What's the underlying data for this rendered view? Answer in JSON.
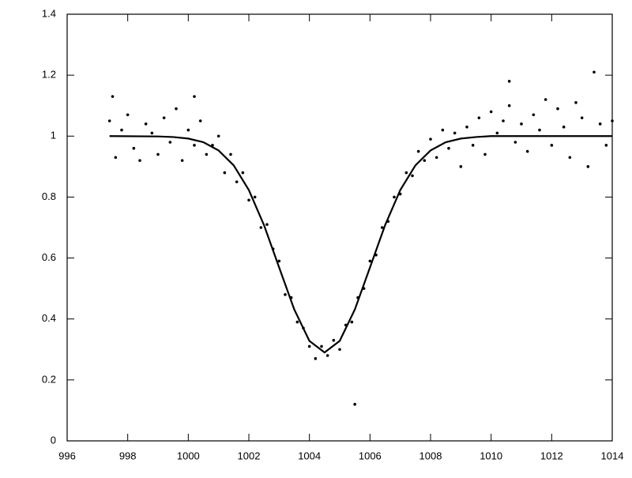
{
  "chart_data": {
    "type": "scatter",
    "xlim": [
      996,
      1014
    ],
    "xticks": [
      996,
      998,
      1000,
      1002,
      1004,
      1006,
      1008,
      1010,
      1012,
      1014
    ],
    "ylim": [
      0,
      1.4
    ],
    "yticks": [
      0,
      0.2,
      0.4,
      0.6,
      0.8,
      1,
      1.2,
      1.4
    ],
    "series": [
      {
        "mode": "markers",
        "color": "#000000",
        "x": [
          997.4,
          997.6,
          997.8,
          998.0,
          998.2,
          998.4,
          998.6,
          998.8,
          999.0,
          999.2,
          999.4,
          999.6,
          999.8,
          1000.0,
          1000.2,
          1000.4,
          1000.6,
          1000.8,
          1001.0,
          1001.2,
          1001.4,
          1001.6,
          1001.8,
          1002.0,
          1002.2,
          1002.4,
          1002.6,
          1002.8,
          1003.0,
          1003.2,
          1003.4,
          1003.6,
          1003.8,
          1004.0,
          1004.2,
          1004.4,
          1004.6,
          1004.8,
          1005.0,
          1005.2,
          1005.4,
          1005.6,
          1005.8,
          1006.0,
          1006.2,
          1006.4,
          1006.6,
          1006.8,
          1007.0,
          1007.2,
          1007.4,
          1007.6,
          1007.8,
          1008.0,
          1008.2,
          1008.4,
          1008.6,
          1008.8,
          1009.0,
          1009.2,
          1009.4,
          1009.6,
          1009.8,
          1010.0,
          1010.2,
          1010.4,
          1010.6,
          1010.8,
          1011.0,
          1011.2,
          1011.4,
          1011.6,
          1011.8,
          1012.0,
          1012.2,
          1012.4,
          1012.6,
          1012.8,
          1013.0,
          1013.2,
          1013.4,
          1013.6,
          1013.8,
          1014.0,
          1005.5,
          997.5,
          1000.2,
          1010.6
        ],
        "values": [
          1.05,
          0.93,
          1.02,
          1.07,
          0.96,
          0.92,
          1.04,
          1.01,
          0.94,
          1.06,
          0.98,
          1.09,
          0.92,
          1.02,
          0.97,
          1.05,
          0.94,
          0.97,
          1.0,
          0.88,
          0.94,
          0.85,
          0.88,
          0.79,
          0.8,
          0.7,
          0.71,
          0.63,
          0.59,
          0.48,
          0.47,
          0.39,
          0.37,
          0.31,
          0.27,
          0.31,
          0.28,
          0.33,
          0.3,
          0.38,
          0.39,
          0.47,
          0.5,
          0.59,
          0.61,
          0.7,
          0.72,
          0.8,
          0.81,
          0.88,
          0.87,
          0.95,
          0.92,
          0.99,
          0.93,
          1.02,
          0.96,
          1.01,
          0.9,
          1.03,
          0.97,
          1.06,
          0.94,
          1.08,
          1.01,
          1.05,
          1.1,
          0.98,
          1.04,
          0.95,
          1.07,
          1.02,
          1.12,
          0.97,
          1.09,
          1.03,
          0.93,
          1.11,
          1.06,
          0.9,
          1.21,
          1.04,
          0.97,
          1.05,
          0.12,
          1.13,
          1.13,
          1.18
        ]
      },
      {
        "mode": "line",
        "color": "#000000",
        "x": [
          997.4,
          999.0,
          999.5,
          1000.0,
          1000.5,
          1001.0,
          1001.5,
          1002.0,
          1002.5,
          1003.0,
          1003.5,
          1004.0,
          1004.5,
          1005.0,
          1005.5,
          1006.0,
          1006.5,
          1007.0,
          1007.5,
          1008.0,
          1008.5,
          1009.0,
          1009.5,
          1010.0,
          1014.0
        ],
        "values": [
          1.0,
          0.999,
          0.997,
          0.992,
          0.98,
          0.953,
          0.904,
          0.823,
          0.708,
          0.569,
          0.431,
          0.328,
          0.29,
          0.328,
          0.431,
          0.569,
          0.708,
          0.823,
          0.904,
          0.953,
          0.98,
          0.992,
          0.997,
          1.0,
          1.0
        ]
      }
    ]
  }
}
